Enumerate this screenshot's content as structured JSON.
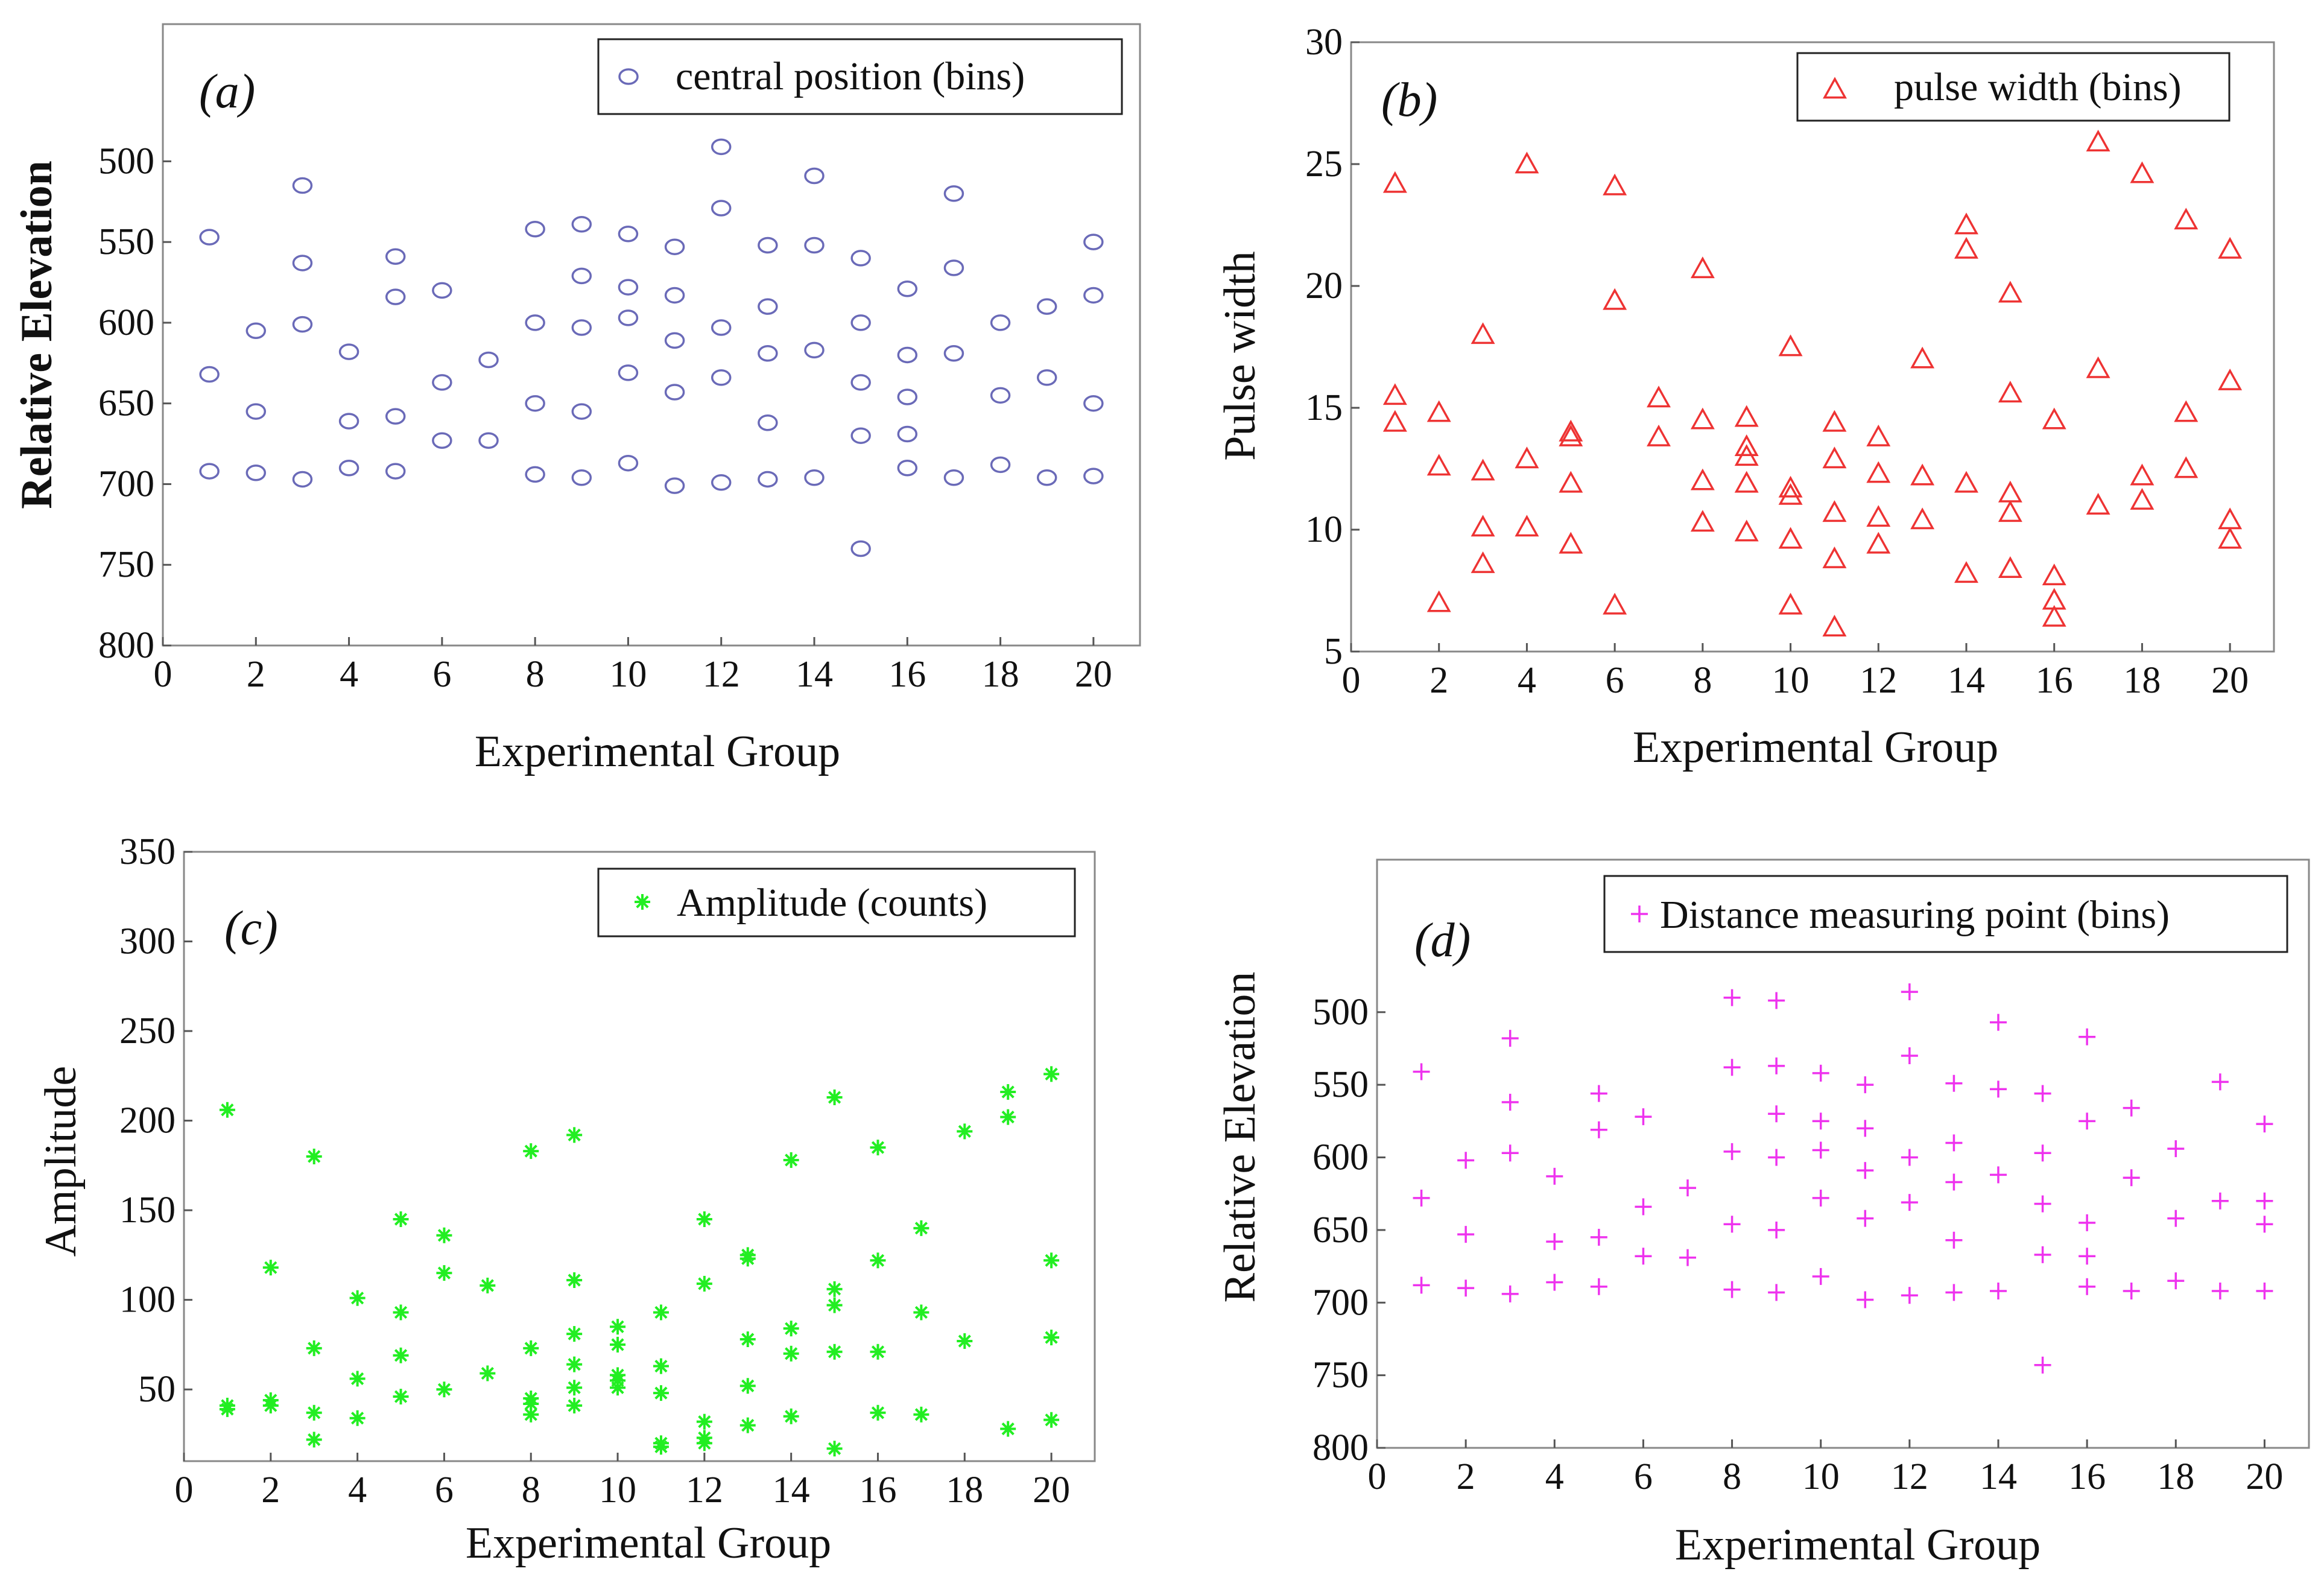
{
  "chart_data": [
    {
      "type": "scatter",
      "panel_label": "(a)",
      "legend": "central position (bins)",
      "marker": "circle",
      "color": "#6a6ab8",
      "xlabel": "Experimental Group",
      "ylabel": "Relative Elevation",
      "label_bold": true,
      "xlim": [
        0,
        21
      ],
      "ylim": [
        800,
        415
      ],
      "y_inverted": true,
      "legend_position": "top-right",
      "xticks": [
        0,
        2,
        4,
        6,
        8,
        10,
        12,
        14,
        16,
        18,
        20
      ],
      "yticks": [
        500,
        550,
        600,
        650,
        700,
        750,
        800
      ],
      "points": [
        [
          1,
          547
        ],
        [
          1,
          632
        ],
        [
          1,
          692
        ],
        [
          2,
          605
        ],
        [
          2,
          655
        ],
        [
          2,
          693
        ],
        [
          3,
          515
        ],
        [
          3,
          563
        ],
        [
          3,
          601
        ],
        [
          3,
          697
        ],
        [
          4,
          618
        ],
        [
          4,
          661
        ],
        [
          4,
          690
        ],
        [
          5,
          559
        ],
        [
          5,
          584
        ],
        [
          5,
          658
        ],
        [
          5,
          692
        ],
        [
          6,
          580
        ],
        [
          6,
          637
        ],
        [
          6,
          673
        ],
        [
          7,
          623
        ],
        [
          7,
          673
        ],
        [
          8,
          542
        ],
        [
          8,
          600
        ],
        [
          8,
          650
        ],
        [
          8,
          694
        ],
        [
          9,
          539
        ],
        [
          9,
          571
        ],
        [
          9,
          603
        ],
        [
          9,
          655
        ],
        [
          9,
          696
        ],
        [
          10,
          545
        ],
        [
          10,
          578
        ],
        [
          10,
          597
        ],
        [
          10,
          631
        ],
        [
          10,
          687
        ],
        [
          11,
          553
        ],
        [
          11,
          583
        ],
        [
          11,
          611
        ],
        [
          11,
          643
        ],
        [
          11,
          701
        ],
        [
          12,
          491
        ],
        [
          12,
          529
        ],
        [
          12,
          603
        ],
        [
          12,
          634
        ],
        [
          12,
          699
        ],
        [
          13,
          552
        ],
        [
          13,
          590
        ],
        [
          13,
          619
        ],
        [
          13,
          662
        ],
        [
          13,
          697
        ],
        [
          14,
          509
        ],
        [
          14,
          552
        ],
        [
          14,
          617
        ],
        [
          14,
          696
        ],
        [
          15,
          560
        ],
        [
          15,
          600
        ],
        [
          15,
          637
        ],
        [
          15,
          670
        ],
        [
          15,
          740
        ],
        [
          16,
          579
        ],
        [
          16,
          620
        ],
        [
          16,
          646
        ],
        [
          16,
          669
        ],
        [
          16,
          690
        ],
        [
          17,
          520
        ],
        [
          17,
          566
        ],
        [
          17,
          619
        ],
        [
          17,
          696
        ],
        [
          18,
          600
        ],
        [
          18,
          645
        ],
        [
          18,
          688
        ],
        [
          19,
          590
        ],
        [
          19,
          634
        ],
        [
          19,
          696
        ],
        [
          20,
          550
        ],
        [
          20,
          583
        ],
        [
          20,
          650
        ],
        [
          20,
          695
        ]
      ]
    },
    {
      "type": "scatter",
      "panel_label": "(b)",
      "legend": "pulse width (bins)",
      "marker": "triangle",
      "color": "#ee3333",
      "xlabel": "Experimental Group",
      "ylabel": "Pulse width",
      "xlim": [
        0,
        21
      ],
      "ylim": [
        5,
        30
      ],
      "legend_position": "top-right",
      "xticks": [
        0,
        2,
        4,
        6,
        8,
        10,
        12,
        14,
        16,
        18,
        20
      ],
      "yticks": [
        5,
        10,
        15,
        20,
        25,
        30
      ],
      "points": [
        [
          1,
          24.2
        ],
        [
          1,
          15.5
        ],
        [
          1,
          14.4
        ],
        [
          2,
          14.8
        ],
        [
          2,
          12.6
        ],
        [
          2,
          7.0
        ],
        [
          3,
          18.0
        ],
        [
          3,
          12.4
        ],
        [
          3,
          10.1
        ],
        [
          3,
          8.6
        ],
        [
          4,
          25.0
        ],
        [
          4,
          12.9
        ],
        [
          4,
          10.1
        ],
        [
          5,
          14.0
        ],
        [
          5,
          13.8
        ],
        [
          5,
          11.9
        ],
        [
          5,
          9.4
        ],
        [
          6,
          24.1
        ],
        [
          6,
          19.4
        ],
        [
          6,
          6.9
        ],
        [
          7,
          15.4
        ],
        [
          7,
          13.8
        ],
        [
          8,
          20.7
        ],
        [
          8,
          14.5
        ],
        [
          8,
          12.0
        ],
        [
          8,
          10.3
        ],
        [
          9,
          14.6
        ],
        [
          9,
          13.4
        ],
        [
          9,
          13.0
        ],
        [
          9,
          11.9
        ],
        [
          9,
          9.9
        ],
        [
          10,
          17.5
        ],
        [
          10,
          11.7
        ],
        [
          10,
          11.4
        ],
        [
          10,
          9.6
        ],
        [
          10,
          6.9
        ],
        [
          11,
          14.4
        ],
        [
          11,
          12.9
        ],
        [
          11,
          10.7
        ],
        [
          11,
          8.8
        ],
        [
          11,
          6.0
        ],
        [
          12,
          13.8
        ],
        [
          12,
          12.3
        ],
        [
          12,
          10.5
        ],
        [
          12,
          9.4
        ],
        [
          13,
          17.0
        ],
        [
          13,
          12.2
        ],
        [
          13,
          10.4
        ],
        [
          14,
          22.5
        ],
        [
          14,
          21.5
        ],
        [
          14,
          11.9
        ],
        [
          14,
          8.2
        ],
        [
          15,
          19.7
        ],
        [
          15,
          15.6
        ],
        [
          15,
          11.5
        ],
        [
          15,
          10.7
        ],
        [
          15,
          8.4
        ],
        [
          16,
          14.5
        ],
        [
          16,
          8.1
        ],
        [
          16,
          7.1
        ],
        [
          16,
          6.4
        ],
        [
          17,
          25.9
        ],
        [
          17,
          16.6
        ],
        [
          17,
          11.0
        ],
        [
          18,
          24.6
        ],
        [
          18,
          12.2
        ],
        [
          18,
          11.2
        ],
        [
          19,
          22.7
        ],
        [
          19,
          14.8
        ],
        [
          19,
          12.5
        ],
        [
          20,
          21.5
        ],
        [
          20,
          16.1
        ],
        [
          20,
          10.4
        ],
        [
          20,
          9.6
        ]
      ]
    },
    {
      "type": "scatter",
      "panel_label": "(c)",
      "legend": "Amplitude (counts)",
      "marker": "asterisk",
      "color": "#22ee22",
      "xlabel": "Experimental Group",
      "ylabel": "Amplitude",
      "xlim": [
        0,
        21
      ],
      "ylim": [
        10,
        350
      ],
      "legend_position": "top-right",
      "xticks": [
        0,
        2,
        4,
        6,
        8,
        10,
        12,
        14,
        16,
        18,
        20
      ],
      "yticks": [
        50,
        100,
        150,
        200,
        250,
        300,
        350
      ],
      "points": [
        [
          1,
          206
        ],
        [
          1,
          41
        ],
        [
          1,
          39
        ],
        [
          2,
          118
        ],
        [
          2,
          44
        ],
        [
          2,
          41
        ],
        [
          3,
          180
        ],
        [
          3,
          73
        ],
        [
          3,
          37
        ],
        [
          3,
          22
        ],
        [
          4,
          101
        ],
        [
          4,
          56
        ],
        [
          4,
          34
        ],
        [
          5,
          145
        ],
        [
          5,
          93
        ],
        [
          5,
          69
        ],
        [
          5,
          46
        ],
        [
          6,
          136
        ],
        [
          6,
          115
        ],
        [
          6,
          50
        ],
        [
          7,
          108
        ],
        [
          7,
          59
        ],
        [
          8,
          183
        ],
        [
          8,
          73
        ],
        [
          8,
          45
        ],
        [
          8,
          42
        ],
        [
          8,
          36
        ],
        [
          9,
          192
        ],
        [
          9,
          111
        ],
        [
          9,
          81
        ],
        [
          9,
          64
        ],
        [
          9,
          51
        ],
        [
          9,
          41
        ],
        [
          10,
          85
        ],
        [
          10,
          75
        ],
        [
          10,
          58
        ],
        [
          10,
          55
        ],
        [
          10,
          51
        ],
        [
          11,
          93
        ],
        [
          11,
          63
        ],
        [
          11,
          48
        ],
        [
          11,
          20
        ],
        [
          11,
          18
        ],
        [
          12,
          145
        ],
        [
          12,
          109
        ],
        [
          12,
          32
        ],
        [
          12,
          23
        ],
        [
          12,
          20
        ],
        [
          13,
          125
        ],
        [
          13,
          123
        ],
        [
          13,
          78
        ],
        [
          13,
          52
        ],
        [
          13,
          30
        ],
        [
          14,
          178
        ],
        [
          14,
          84
        ],
        [
          14,
          70
        ],
        [
          14,
          35
        ],
        [
          15,
          213
        ],
        [
          15,
          106
        ],
        [
          15,
          97
        ],
        [
          15,
          71
        ],
        [
          15,
          17
        ],
        [
          16,
          185
        ],
        [
          16,
          122
        ],
        [
          16,
          71
        ],
        [
          16,
          37
        ],
        [
          17,
          140
        ],
        [
          17,
          93
        ],
        [
          17,
          36
        ],
        [
          18,
          194
        ],
        [
          18,
          77
        ],
        [
          19,
          216
        ],
        [
          19,
          202
        ],
        [
          19,
          28
        ],
        [
          20,
          226
        ],
        [
          20,
          122
        ],
        [
          20,
          79
        ],
        [
          20,
          33
        ]
      ]
    },
    {
      "type": "scatter",
      "panel_label": "(d)",
      "legend": "Distance measuring point (bins)",
      "marker": "plus",
      "color": "#ee33ee",
      "xlabel": "Experimental Group",
      "ylabel": "Relative Elevation",
      "xlim": [
        0,
        21
      ],
      "ylim": [
        800,
        395
      ],
      "y_inverted": true,
      "legend_position": "top-right",
      "xticks": [
        0,
        2,
        4,
        6,
        8,
        10,
        12,
        14,
        16,
        18,
        20
      ],
      "yticks": [
        500,
        550,
        600,
        650,
        700,
        750,
        800
      ],
      "points": [
        [
          1,
          541
        ],
        [
          1,
          628
        ],
        [
          1,
          688
        ],
        [
          2,
          602
        ],
        [
          2,
          653
        ],
        [
          2,
          690
        ],
        [
          3,
          518
        ],
        [
          3,
          562
        ],
        [
          3,
          597
        ],
        [
          3,
          694
        ],
        [
          4,
          613
        ],
        [
          4,
          658
        ],
        [
          4,
          686
        ],
        [
          5,
          556
        ],
        [
          5,
          581
        ],
        [
          5,
          655
        ],
        [
          5,
          689
        ],
        [
          6,
          572
        ],
        [
          6,
          634
        ],
        [
          6,
          668
        ],
        [
          7,
          621
        ],
        [
          7,
          669
        ],
        [
          8,
          490
        ],
        [
          8,
          538
        ],
        [
          8,
          596
        ],
        [
          8,
          646
        ],
        [
          8,
          691
        ],
        [
          9,
          492
        ],
        [
          9,
          537
        ],
        [
          9,
          570
        ],
        [
          9,
          600
        ],
        [
          9,
          650
        ],
        [
          9,
          693
        ],
        [
          10,
          542
        ],
        [
          10,
          575
        ],
        [
          10,
          595
        ],
        [
          10,
          628
        ],
        [
          10,
          682
        ],
        [
          11,
          550
        ],
        [
          11,
          580
        ],
        [
          11,
          609
        ],
        [
          11,
          642
        ],
        [
          11,
          698
        ],
        [
          12,
          486
        ],
        [
          12,
          530
        ],
        [
          12,
          600
        ],
        [
          12,
          631
        ],
        [
          12,
          695
        ],
        [
          13,
          549
        ],
        [
          13,
          590
        ],
        [
          13,
          617
        ],
        [
          13,
          657
        ],
        [
          13,
          693
        ],
        [
          14,
          507
        ],
        [
          14,
          553
        ],
        [
          14,
          612
        ],
        [
          14,
          692
        ],
        [
          15,
          556
        ],
        [
          15,
          597
        ],
        [
          15,
          632
        ],
        [
          15,
          667
        ],
        [
          15,
          743
        ],
        [
          16,
          517
        ],
        [
          16,
          575
        ],
        [
          16,
          645
        ],
        [
          16,
          668
        ],
        [
          16,
          689
        ],
        [
          17,
          566
        ],
        [
          17,
          614
        ],
        [
          17,
          692
        ],
        [
          18,
          594
        ],
        [
          18,
          642
        ],
        [
          18,
          685
        ],
        [
          19,
          548
        ],
        [
          19,
          630
        ],
        [
          19,
          692
        ],
        [
          20,
          577
        ],
        [
          20,
          630
        ],
        [
          20,
          646
        ],
        [
          20,
          692
        ]
      ]
    }
  ]
}
